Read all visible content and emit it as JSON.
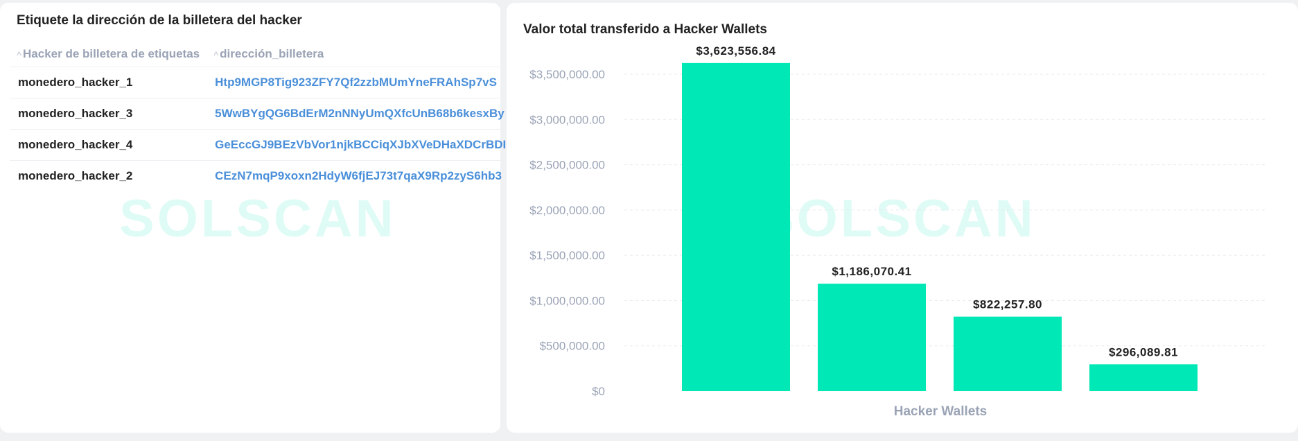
{
  "table_panel": {
    "title": "Etiquete la dirección de la billetera del hacker",
    "watermark": "SOLSCAN",
    "columns": [
      "Hacker de billetera de etiquetas",
      "dirección_billetera"
    ],
    "rows": [
      {
        "label": "monedero_hacker_1",
        "address": "Htp9MGP8Tig923ZFY7Qf2zzbMUmYneFRAhSp7vS"
      },
      {
        "label": "monedero_hacker_3",
        "address": "5WwBYgQG6BdErM2nNNyUmQXfcUnB68b6kesxBy"
      },
      {
        "label": "monedero_hacker_4",
        "address": "GeEccGJ9BEzVbVor1njkBCCiqXJbXVeDHaXDCrBDI"
      },
      {
        "label": "monedero_hacker_2",
        "address": "CEzN7mqP9xoxn2HdyW6fjEJ73t7qaX9Rp2zyS6hb3"
      }
    ]
  },
  "chart_panel": {
    "watermark": "SOLSCAN"
  },
  "colors": {
    "bar": "#00e8b5",
    "link": "#4a8fd9",
    "axis_text": "#9aa3b5"
  },
  "chart_data": {
    "type": "bar",
    "title": "Valor total transferido a Hacker Wallets",
    "xlabel": "Hacker Wallets",
    "ylabel": "",
    "categories": [
      "",
      "",
      "",
      ""
    ],
    "values": [
      3623556.84,
      1186070.41,
      822257.8,
      296089.81
    ],
    "data_labels": [
      "$3,623,556.84",
      "$1,186,070.41",
      "$822,257.80",
      "$296,089.81"
    ],
    "ylim": [
      0,
      3500000
    ],
    "yticks": [
      0,
      500000,
      1000000,
      1500000,
      2000000,
      2500000,
      3000000,
      3500000
    ],
    "ytick_labels": [
      "$0",
      "$500,000.00",
      "$1,000,000.00",
      "$1,500,000.00",
      "$2,000,000.00",
      "$2,500,000.00",
      "$3,000,000.00",
      "$3,500,000.00"
    ],
    "grid": true,
    "legend": "none"
  }
}
